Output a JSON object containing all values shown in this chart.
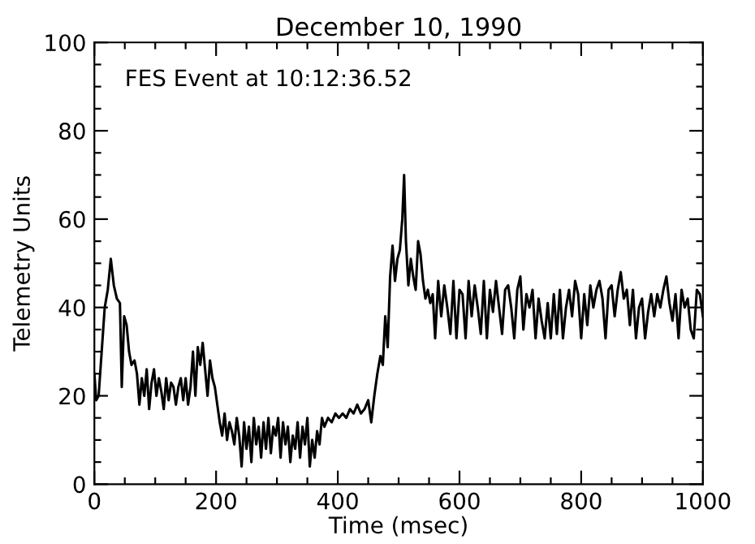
{
  "chart_data": {
    "type": "line",
    "title": "December 10, 1990",
    "xlabel": "Time (msec)",
    "ylabel": "Telemetry Units",
    "annotations": [
      "FES Event at 10:12:36.52"
    ],
    "xlim": [
      0,
      1000
    ],
    "ylim": [
      0,
      100
    ],
    "xticks": [
      0,
      {
        "value": 50,
        "label": null
      },
      {
        "value": 100,
        "label": null
      },
      {
        "value": 150,
        "label": null
      },
      200,
      {
        "value": 250,
        "label": null
      },
      {
        "value": 300,
        "label": null
      },
      {
        "value": 350,
        "label": null
      },
      400,
      {
        "value": 450,
        "label": null
      },
      {
        "value": 500,
        "label": null
      },
      {
        "value": 550,
        "label": null
      },
      600,
      {
        "value": 650,
        "label": null
      },
      {
        "value": 700,
        "label": null
      },
      {
        "value": 750,
        "label": null
      },
      800,
      {
        "value": 850,
        "label": null
      },
      {
        "value": 900,
        "label": null
      },
      {
        "value": 950,
        "label": null
      },
      1000
    ],
    "yticks": [
      0,
      {
        "value": 5,
        "label": null
      },
      {
        "value": 10,
        "label": null
      },
      {
        "value": 15,
        "label": null
      },
      20,
      {
        "value": 25,
        "label": null
      },
      {
        "value": 30,
        "label": null
      },
      {
        "value": 35,
        "label": null
      },
      40,
      {
        "value": 45,
        "label": null
      },
      {
        "value": 50,
        "label": null
      },
      {
        "value": 55,
        "label": null
      },
      60,
      {
        "value": 65,
        "label": null
      },
      {
        "value": 70,
        "label": null
      },
      {
        "value": 75,
        "label": null
      },
      80,
      {
        "value": 85,
        "label": null
      },
      {
        "value": 90,
        "label": null
      },
      {
        "value": 95,
        "label": null
      },
      100
    ],
    "grid": false,
    "legend": false,
    "marker": "none",
    "line_style": "solid",
    "series": [
      {
        "color": "#000000",
        "x": [
          0,
          3,
          7,
          12,
          17,
          22,
          27,
          32,
          37,
          42,
          45,
          49,
          53,
          57,
          61,
          66,
          70,
          74,
          78,
          82,
          86,
          90,
          94,
          98,
          102,
          106,
          110,
          114,
          118,
          122,
          126,
          130,
          134,
          138,
          142,
          146,
          150,
          154,
          158,
          162,
          166,
          170,
          174,
          178,
          182,
          186,
          190,
          194,
          198,
          202,
          206,
          210,
          214,
          218,
          222,
          226,
          230,
          234,
          238,
          242,
          246,
          250,
          254,
          258,
          262,
          266,
          270,
          274,
          278,
          282,
          286,
          290,
          294,
          298,
          302,
          306,
          310,
          314,
          318,
          322,
          326,
          330,
          334,
          338,
          342,
          346,
          350,
          354,
          358,
          362,
          366,
          370,
          374,
          378,
          384,
          390,
          396,
          402,
          408,
          414,
          420,
          426,
          432,
          438,
          444,
          450,
          455,
          460,
          465,
          470,
          474,
          478,
          482,
          486,
          490,
          494,
          498,
          502,
          506,
          509,
          512,
          516,
          520,
          524,
          528,
          532,
          536,
          540,
          544,
          548,
          552,
          556,
          560,
          565,
          570,
          575,
          580,
          585,
          590,
          595,
          600,
          605,
          610,
          615,
          620,
          625,
          630,
          635,
          640,
          645,
          650,
          655,
          660,
          665,
          670,
          675,
          680,
          685,
          690,
          695,
          700,
          705,
          710,
          715,
          720,
          725,
          730,
          735,
          740,
          745,
          750,
          755,
          760,
          765,
          770,
          775,
          780,
          785,
          790,
          795,
          800,
          805,
          810,
          815,
          820,
          825,
          830,
          835,
          840,
          845,
          850,
          855,
          860,
          865,
          870,
          875,
          880,
          885,
          890,
          895,
          900,
          905,
          910,
          915,
          920,
          925,
          930,
          935,
          940,
          945,
          950,
          955,
          960,
          965,
          970,
          975,
          980,
          985,
          990,
          995,
          1000
        ],
        "values": [
          25,
          19,
          20,
          30,
          40,
          44,
          51,
          45,
          42,
          41,
          22,
          38,
          36,
          30,
          27,
          28,
          25,
          18,
          24,
          20,
          26,
          17,
          23,
          26,
          20,
          24,
          21,
          17,
          24,
          19,
          23,
          22,
          18,
          22,
          24,
          19,
          24,
          18,
          22,
          30,
          20,
          31,
          27,
          32,
          26,
          20,
          28,
          24,
          22,
          18,
          14,
          11,
          16,
          10,
          14,
          12,
          9,
          15,
          11,
          4,
          14,
          8,
          13,
          5,
          15,
          9,
          13,
          6,
          14,
          8,
          15,
          7,
          13,
          11,
          15,
          6,
          14,
          9,
          13,
          5,
          11,
          8,
          14,
          6,
          13,
          9,
          15,
          4,
          10,
          6,
          12,
          9,
          15,
          13,
          15,
          14,
          16,
          15,
          16,
          15,
          17,
          16,
          18,
          16,
          17,
          19,
          14,
          20,
          25,
          29,
          27,
          38,
          31,
          47,
          54,
          46,
          51,
          53,
          60,
          70,
          55,
          45,
          51,
          47,
          44,
          55,
          52,
          46,
          42,
          44,
          41,
          43,
          33,
          46,
          38,
          45,
          40,
          34,
          46,
          33,
          44,
          43,
          33,
          46,
          38,
          45,
          40,
          34,
          46,
          33,
          44,
          39,
          46,
          40,
          34,
          44,
          45,
          40,
          33,
          44,
          47,
          35,
          43,
          40,
          44,
          33,
          42,
          37,
          33,
          41,
          33,
          43,
          34,
          44,
          33,
          40,
          44,
          38,
          46,
          43,
          33,
          43,
          36,
          45,
          40,
          44,
          46,
          42,
          33,
          44,
          45,
          38,
          44,
          48,
          42,
          44,
          36,
          44,
          33,
          40,
          42,
          33,
          39,
          43,
          38,
          43,
          40,
          44,
          47,
          41,
          37,
          43,
          33,
          44,
          40,
          42,
          35,
          33,
          44,
          43,
          38
        ]
      }
    ]
  }
}
